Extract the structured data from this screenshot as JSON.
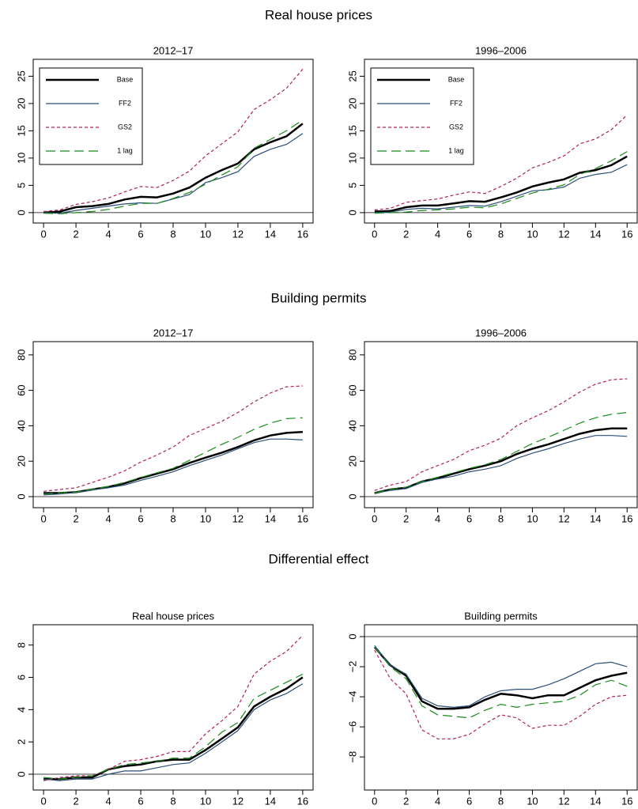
{
  "section_titles": [
    "Real house prices",
    "Building permits",
    "Differential effect"
  ],
  "chart_data": [
    {
      "type": "line",
      "title": "2012–17",
      "x": [
        0,
        1,
        2,
        3,
        4,
        5,
        6,
        7,
        8,
        9,
        10,
        11,
        12,
        13,
        14,
        15,
        16
      ],
      "xlim": [
        -0.64,
        16.64
      ],
      "xticks": [
        0,
        2,
        4,
        6,
        8,
        10,
        12,
        14,
        16
      ],
      "ylim": [
        -1.9,
        28.1
      ],
      "yticks": [
        0,
        5,
        10,
        15,
        20,
        25
      ],
      "hline": 0,
      "legend": "top-left",
      "series": [
        {
          "name": "Base",
          "color": "#000000",
          "dash": "solid",
          "line_width": 2.5,
          "values": [
            0,
            0.2,
            1,
            1.2,
            1.6,
            2.4,
            2.9,
            2.8,
            3.5,
            4.6,
            6.4,
            7.8,
            9,
            11.6,
            12.9,
            14,
            16.3
          ]
        },
        {
          "name": "FF2",
          "color": "#2b4e7a",
          "dash": "solid",
          "line_width": 1.2,
          "values": [
            0,
            -0.1,
            0.4,
            0.8,
            1.2,
            1.6,
            1.8,
            1.7,
            2.5,
            3.3,
            5.5,
            6.4,
            7.5,
            10.3,
            11.6,
            12.5,
            14.5
          ]
        },
        {
          "name": "GS2",
          "color": "#b0205c",
          "dash": "dotted",
          "line_width": 1.2,
          "values": [
            0.2,
            0.5,
            1.5,
            2,
            2.7,
            3.8,
            4.8,
            4.6,
            5.9,
            7.6,
            10.4,
            12.6,
            14.8,
            18.9,
            20.7,
            22.8,
            26.3
          ]
        },
        {
          "name": "1 lag",
          "color": "#1a8a1a",
          "dash": "dashed",
          "line_width": 1.2,
          "values": [
            -0.1,
            -0.2,
            0,
            0.2,
            0.6,
            1.2,
            1.7,
            1.7,
            2.6,
            3.7,
            5.2,
            6.9,
            8.4,
            11.8,
            13.4,
            15,
            17
          ]
        }
      ]
    },
    {
      "type": "line",
      "title": "1996–2006",
      "x": [
        0,
        1,
        2,
        3,
        4,
        5,
        6,
        7,
        8,
        9,
        10,
        11,
        12,
        13,
        14,
        15,
        16
      ],
      "xlim": [
        -0.64,
        16.64
      ],
      "xticks": [
        0,
        2,
        4,
        6,
        8,
        10,
        12,
        14,
        16
      ],
      "ylim": [
        -1.9,
        28.1
      ],
      "yticks": [
        0,
        5,
        10,
        15,
        20,
        25
      ],
      "hline": 0,
      "legend": "top-left",
      "series": [
        {
          "name": "Base",
          "color": "#000000",
          "dash": "solid",
          "line_width": 2.5,
          "values": [
            0.2,
            0.3,
            1,
            1.3,
            1.3,
            1.7,
            2.1,
            2,
            2.8,
            3.7,
            4.8,
            5.5,
            6.1,
            7.3,
            7.8,
            8.7,
            10.3
          ]
        },
        {
          "name": "FF2",
          "color": "#2b4e7a",
          "dash": "solid",
          "line_width": 1.2,
          "values": [
            0,
            0.1,
            0.6,
            0.8,
            0.7,
            1,
            1.3,
            1.2,
            2,
            3,
            4,
            4.2,
            4.7,
            6.3,
            7,
            7.4,
            8.8
          ]
        },
        {
          "name": "GS2",
          "color": "#b0205c",
          "dash": "dotted",
          "line_width": 1.2,
          "values": [
            0.5,
            0.8,
            1.9,
            2.2,
            2.5,
            3.2,
            3.8,
            3.5,
            4.8,
            6.3,
            8.2,
            9.2,
            10.4,
            12.6,
            13.5,
            15.2,
            17.9
          ]
        },
        {
          "name": "1 lag",
          "color": "#1a8a1a",
          "dash": "dashed",
          "line_width": 1.2,
          "values": [
            -0.1,
            0,
            0.1,
            0.4,
            0.5,
            0.7,
            1,
            0.9,
            1.6,
            2.6,
            3.6,
            4.3,
            5.1,
            7,
            8.1,
            9.5,
            11.2
          ]
        }
      ]
    },
    {
      "type": "line",
      "title": "2012–17",
      "x": [
        0,
        1,
        2,
        3,
        4,
        5,
        6,
        7,
        8,
        9,
        10,
        11,
        12,
        13,
        14,
        15,
        16
      ],
      "xlim": [
        -0.64,
        16.64
      ],
      "xticks": [
        0,
        2,
        4,
        6,
        8,
        10,
        12,
        14,
        16
      ],
      "ylim": [
        -6.25,
        87.5
      ],
      "yticks": [
        0,
        20,
        40,
        60,
        80
      ],
      "hline": 0,
      "series": [
        {
          "name": "Base",
          "color": "#000000",
          "dash": "solid",
          "line_width": 2.5,
          "values": [
            2,
            2,
            2.5,
            4,
            5.5,
            7.5,
            10.5,
            13,
            15.5,
            19,
            22,
            24.8,
            28,
            31.8,
            34.5,
            36,
            36.5
          ]
        },
        {
          "name": "FF2",
          "color": "#2b4e7a",
          "dash": "solid",
          "line_width": 1.2,
          "values": [
            1,
            1.5,
            2.3,
            3.8,
            5,
            6.5,
            9.2,
            11.5,
            14,
            17.5,
            20.5,
            23.5,
            27,
            30.5,
            32.5,
            32.5,
            32
          ]
        },
        {
          "name": "GS2",
          "color": "#b0205c",
          "dash": "dotted",
          "line_width": 1.2,
          "values": [
            3,
            4,
            5,
            8,
            11,
            14.5,
            19.5,
            23.5,
            28,
            34.5,
            38.5,
            42.5,
            47.5,
            53.5,
            58.5,
            62,
            62.5
          ]
        },
        {
          "name": "1 lag",
          "color": "#1a8a1a",
          "dash": "dashed",
          "line_width": 1.2,
          "values": [
            1.5,
            2,
            2.5,
            4.2,
            5.8,
            8,
            10.8,
            13.5,
            16,
            20.5,
            25,
            29.5,
            33.5,
            38,
            41.5,
            44,
            44.5
          ]
        }
      ]
    },
    {
      "type": "line",
      "title": "1996–2006",
      "x": [
        0,
        1,
        2,
        3,
        4,
        5,
        6,
        7,
        8,
        9,
        10,
        11,
        12,
        13,
        14,
        15,
        16
      ],
      "xlim": [
        -0.64,
        16.64
      ],
      "xticks": [
        0,
        2,
        4,
        6,
        8,
        10,
        12,
        14,
        16
      ],
      "ylim": [
        -6.25,
        87.5
      ],
      "yticks": [
        0,
        20,
        40,
        60,
        80
      ],
      "hline": 0,
      "series": [
        {
          "name": "Base",
          "color": "#000000",
          "dash": "solid",
          "line_width": 2.5,
          "values": [
            2,
            4,
            5,
            8.5,
            10.5,
            13,
            15.5,
            17.5,
            20,
            24,
            27,
            29.5,
            32.5,
            35.5,
            37.5,
            38.5,
            38.5
          ]
        },
        {
          "name": "FF2",
          "color": "#2b4e7a",
          "dash": "solid",
          "line_width": 1.2,
          "values": [
            2,
            3.5,
            4.5,
            8,
            10,
            11.5,
            14,
            15.5,
            17.5,
            21.5,
            24.5,
            27,
            30,
            32.5,
            34.5,
            34.5,
            34
          ]
        },
        {
          "name": "GS2",
          "color": "#b0205c",
          "dash": "dotted",
          "line_width": 1.2,
          "values": [
            3.5,
            6.5,
            8.5,
            14,
            17.5,
            21,
            26,
            29,
            33,
            40,
            44.5,
            48.5,
            53.5,
            59,
            63.5,
            66,
            66.5
          ]
        },
        {
          "name": "1 lag",
          "color": "#1a8a1a",
          "dash": "dashed",
          "line_width": 1.2,
          "values": [
            2,
            4,
            5.3,
            8.5,
            11,
            13.5,
            16,
            18,
            21,
            25.5,
            30,
            33.5,
            37.5,
            41.5,
            44.5,
            46.5,
            47.5
          ]
        }
      ]
    },
    {
      "type": "line",
      "title": "Real house prices",
      "x": [
        0,
        1,
        2,
        3,
        4,
        5,
        6,
        7,
        8,
        9,
        10,
        11,
        12,
        13,
        14,
        15,
        16
      ],
      "xlim": [
        -0.64,
        16.64
      ],
      "xticks": [
        0,
        2,
        4,
        6,
        8,
        10,
        12,
        14,
        16
      ],
      "ylim": [
        -0.98,
        9.26
      ],
      "yticks": [
        0,
        2,
        4,
        6,
        8
      ],
      "hline": 0,
      "series": [
        {
          "name": "Base",
          "color": "#000000",
          "dash": "solid",
          "line_width": 2.5,
          "values": [
            -0.3,
            -0.3,
            -0.2,
            -0.2,
            0.3,
            0.5,
            0.6,
            0.8,
            0.9,
            0.9,
            1.5,
            2.2,
            2.9,
            4.2,
            4.8,
            5.3,
            6
          ]
        },
        {
          "name": "FF2",
          "color": "#2b4e7a",
          "dash": "solid",
          "line_width": 1.2,
          "values": [
            -0.3,
            -0.4,
            -0.3,
            -0.3,
            0,
            0.2,
            0.2,
            0.4,
            0.6,
            0.7,
            1.3,
            2,
            2.7,
            4,
            4.6,
            5,
            5.6
          ]
        },
        {
          "name": "GS2",
          "color": "#b0205c",
          "dash": "dotted",
          "line_width": 1.2,
          "values": [
            -0.4,
            -0.2,
            -0.1,
            -0.1,
            0.3,
            0.8,
            0.9,
            1.1,
            1.4,
            1.4,
            2.5,
            3.3,
            4.2,
            6.2,
            7,
            7.6,
            8.6
          ]
        },
        {
          "name": "1 lag",
          "color": "#1a8a1a",
          "dash": "dashed",
          "line_width": 1.2,
          "values": [
            -0.2,
            -0.3,
            -0.2,
            -0.1,
            0.3,
            0.6,
            0.7,
            0.8,
            1,
            1,
            1.7,
            2.6,
            3.2,
            4.7,
            5.2,
            5.7,
            6.2
          ]
        }
      ]
    },
    {
      "type": "line",
      "title": "Building permits",
      "x": [
        0,
        1,
        2,
        3,
        4,
        5,
        6,
        7,
        8,
        9,
        10,
        11,
        12,
        13,
        14,
        15,
        16
      ],
      "xlim": [
        -0.64,
        16.64
      ],
      "xticks": [
        0,
        2,
        4,
        6,
        8,
        10,
        12,
        14,
        16
      ],
      "ylim": [
        -10.2,
        0.79
      ],
      "yticks": [
        {
          "value": 0,
          "label": "0"
        },
        {
          "value": -2,
          "label": "−2"
        },
        {
          "value": -4,
          "label": "−4"
        },
        {
          "value": -6,
          "label": "−6"
        },
        {
          "value": -8,
          "label": "−8"
        }
      ],
      "hline": 0,
      "series": [
        {
          "name": "Base",
          "color": "#000000",
          "dash": "solid",
          "line_width": 2.5,
          "values": [
            -0.7,
            -1.9,
            -2.6,
            -4.3,
            -4.8,
            -4.8,
            -4.7,
            -4.2,
            -3.8,
            -3.9,
            -4.1,
            -3.9,
            -3.9,
            -3.4,
            -2.9,
            -2.6,
            -2.4
          ]
        },
        {
          "name": "FF2",
          "color": "#2b4e7a",
          "dash": "solid",
          "line_width": 1.2,
          "values": [
            -0.6,
            -1.9,
            -2.5,
            -4.1,
            -4.6,
            -4.7,
            -4.6,
            -4,
            -3.6,
            -3.5,
            -3.5,
            -3.2,
            -2.8,
            -2.3,
            -1.8,
            -1.7,
            -2
          ]
        },
        {
          "name": "GS2",
          "color": "#b0205c",
          "dash": "dotted",
          "line_width": 1.2,
          "values": [
            -0.9,
            -2.8,
            -3.8,
            -6.2,
            -6.8,
            -6.8,
            -6.5,
            -5.8,
            -5.2,
            -5.4,
            -6.1,
            -5.9,
            -5.9,
            -5.3,
            -4.5,
            -4,
            -3.9
          ]
        },
        {
          "name": "1 lag",
          "color": "#1a8a1a",
          "dash": "dashed",
          "line_width": 1.2,
          "values": [
            -0.7,
            -2,
            -2.8,
            -4.6,
            -5.2,
            -5.3,
            -5.4,
            -4.9,
            -4.5,
            -4.7,
            -4.5,
            -4.4,
            -4.3,
            -3.9,
            -3.2,
            -2.9,
            -3.3
          ]
        }
      ]
    }
  ]
}
